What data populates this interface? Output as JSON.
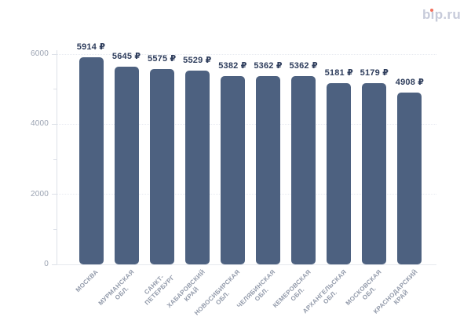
{
  "logo": {
    "text": "bip.ru",
    "color": "#c7cbda",
    "dot_color": "#f3705c"
  },
  "chart_data": {
    "type": "bar",
    "title": "",
    "xlabel": "",
    "ylabel": "",
    "unit": "₽",
    "categories": [
      [
        "МОСКВА"
      ],
      [
        "МУРМАНСКАЯ",
        "ОБЛ."
      ],
      [
        "САНКТ-",
        "ПЕТЕРБУРГ"
      ],
      [
        "ХАБАРОВСКИЙ",
        "КРАЙ"
      ],
      [
        "НОВОСИБИРСКАЯ",
        "ОБЛ."
      ],
      [
        "ЧЕЛЯБИНСКАЯ",
        "ОБЛ."
      ],
      [
        "КЕМЕРОВСКАЯ",
        "ОБЛ."
      ],
      [
        "АРХАНГЕЛЬСКАЯ",
        "ОБЛ."
      ],
      [
        "МОСКОВСКАЯ",
        "ОБЛ."
      ],
      [
        "КРАСНОДАРСКИЙ",
        "КРАЙ"
      ]
    ],
    "values": [
      5914,
      5645,
      5575,
      5529,
      5382,
      5362,
      5362,
      5181,
      5179,
      4908
    ],
    "ylim": [
      0,
      6000
    ],
    "y_major_ticks": [
      0,
      2000,
      4000,
      6000
    ],
    "y_minor_ticks": [
      1000,
      3000,
      5000
    ],
    "grid": "dotted horizontal at major ticks",
    "legend": "none",
    "colors": {
      "bar": "#4d6180",
      "value_label": "#2e3d5c",
      "y_tick_label": "#9aa2b1",
      "x_tick_label": "#929aaa",
      "axis_line": "#dde1e8",
      "baseline": "#e6e9ee",
      "gridline": "#e7eaf1"
    }
  }
}
